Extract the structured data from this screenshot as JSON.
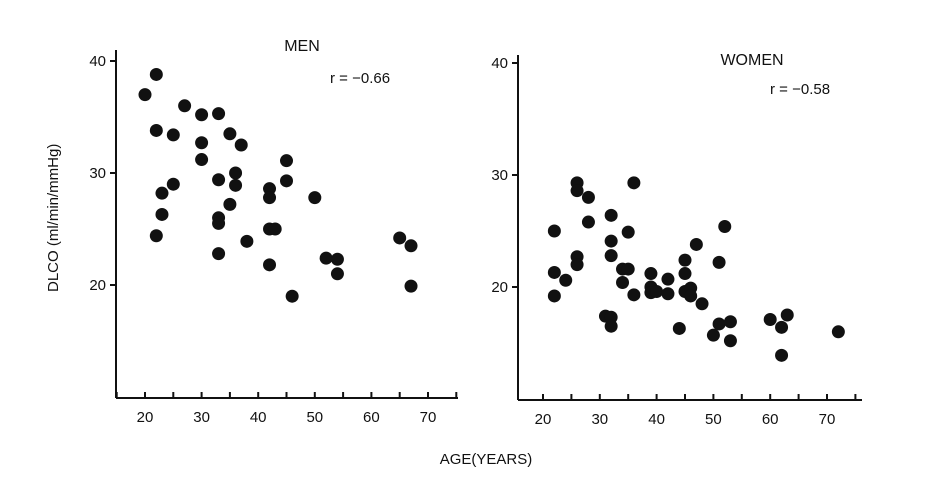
{
  "chart_data": [
    {
      "type": "scatter",
      "title": "MEN",
      "annotation": "r = −0.66",
      "ylabel": "DLCO  (ml/min/mmHg)",
      "xlabel": "AGE(YEARS)",
      "xlim": [
        15,
        75
      ],
      "ylim": [
        10,
        42
      ],
      "xticks": [
        "20",
        "30",
        "40",
        "50",
        "60",
        "70"
      ],
      "yticks": [
        "20",
        "30",
        "40"
      ],
      "points": [
        {
          "x": 20,
          "y": 37.0
        },
        {
          "x": 22,
          "y": 38.8
        },
        {
          "x": 22,
          "y": 33.8
        },
        {
          "x": 22,
          "y": 24.4
        },
        {
          "x": 23,
          "y": 28.2
        },
        {
          "x": 23,
          "y": 26.3
        },
        {
          "x": 25,
          "y": 33.4
        },
        {
          "x": 25,
          "y": 29.0
        },
        {
          "x": 27,
          "y": 36.0
        },
        {
          "x": 30,
          "y": 35.2
        },
        {
          "x": 30,
          "y": 32.7
        },
        {
          "x": 30,
          "y": 31.2
        },
        {
          "x": 33,
          "y": 35.3
        },
        {
          "x": 33,
          "y": 29.4
        },
        {
          "x": 33,
          "y": 26.0
        },
        {
          "x": 33,
          "y": 25.5
        },
        {
          "x": 33,
          "y": 22.8
        },
        {
          "x": 35,
          "y": 33.5
        },
        {
          "x": 35,
          "y": 27.2
        },
        {
          "x": 36,
          "y": 30.0
        },
        {
          "x": 36,
          "y": 28.9
        },
        {
          "x": 37,
          "y": 32.5
        },
        {
          "x": 38,
          "y": 23.9
        },
        {
          "x": 42,
          "y": 28.6
        },
        {
          "x": 42,
          "y": 27.8
        },
        {
          "x": 42,
          "y": 25.0
        },
        {
          "x": 43,
          "y": 25.0
        },
        {
          "x": 42,
          "y": 21.8
        },
        {
          "x": 45,
          "y": 31.1
        },
        {
          "x": 45,
          "y": 29.3
        },
        {
          "x": 46,
          "y": 19.0
        },
        {
          "x": 50,
          "y": 27.8
        },
        {
          "x": 52,
          "y": 22.4
        },
        {
          "x": 54,
          "y": 22.3
        },
        {
          "x": 54,
          "y": 21.0
        },
        {
          "x": 65,
          "y": 24.2
        },
        {
          "x": 67,
          "y": 23.5
        },
        {
          "x": 67,
          "y": 19.9
        }
      ]
    },
    {
      "type": "scatter",
      "title": "WOMEN",
      "annotation": "r = −0.58",
      "ylabel": "",
      "xlabel": "AGE(YEARS)",
      "xlim": [
        15,
        75
      ],
      "ylim": [
        10,
        42
      ],
      "xticks": [
        "20",
        "30",
        "40",
        "50",
        "60",
        "70"
      ],
      "yticks": [
        "20",
        "30",
        "40"
      ],
      "points": [
        {
          "x": 22,
          "y": 25.0
        },
        {
          "x": 22,
          "y": 21.3
        },
        {
          "x": 22,
          "y": 19.2
        },
        {
          "x": 24,
          "y": 20.6
        },
        {
          "x": 26,
          "y": 29.3
        },
        {
          "x": 26,
          "y": 28.6
        },
        {
          "x": 26,
          "y": 22.7
        },
        {
          "x": 26,
          "y": 22.0
        },
        {
          "x": 28,
          "y": 28.0
        },
        {
          "x": 28,
          "y": 25.8
        },
        {
          "x": 31,
          "y": 17.4
        },
        {
          "x": 32,
          "y": 26.4
        },
        {
          "x": 32,
          "y": 24.1
        },
        {
          "x": 32,
          "y": 22.8
        },
        {
          "x": 32,
          "y": 17.3
        },
        {
          "x": 32,
          "y": 16.5
        },
        {
          "x": 34,
          "y": 21.6
        },
        {
          "x": 34,
          "y": 20.4
        },
        {
          "x": 35,
          "y": 24.9
        },
        {
          "x": 35,
          "y": 21.6
        },
        {
          "x": 36,
          "y": 29.3
        },
        {
          "x": 36,
          "y": 19.3
        },
        {
          "x": 39,
          "y": 21.2
        },
        {
          "x": 39,
          "y": 20.0
        },
        {
          "x": 39,
          "y": 19.5
        },
        {
          "x": 40,
          "y": 19.6
        },
        {
          "x": 42,
          "y": 20.7
        },
        {
          "x": 42,
          "y": 19.4
        },
        {
          "x": 44,
          "y": 16.3
        },
        {
          "x": 45,
          "y": 22.4
        },
        {
          "x": 45,
          "y": 21.2
        },
        {
          "x": 45,
          "y": 19.6
        },
        {
          "x": 46,
          "y": 19.9
        },
        {
          "x": 46,
          "y": 19.2
        },
        {
          "x": 47,
          "y": 23.8
        },
        {
          "x": 48,
          "y": 18.5
        },
        {
          "x": 50,
          "y": 15.7
        },
        {
          "x": 51,
          "y": 22.2
        },
        {
          "x": 51,
          "y": 16.7
        },
        {
          "x": 52,
          "y": 25.4
        },
        {
          "x": 53,
          "y": 16.9
        },
        {
          "x": 53,
          "y": 15.2
        },
        {
          "x": 60,
          "y": 17.1
        },
        {
          "x": 62,
          "y": 16.4
        },
        {
          "x": 62,
          "y": 13.9
        },
        {
          "x": 63,
          "y": 17.5
        },
        {
          "x": 72,
          "y": 16.0
        }
      ]
    }
  ]
}
